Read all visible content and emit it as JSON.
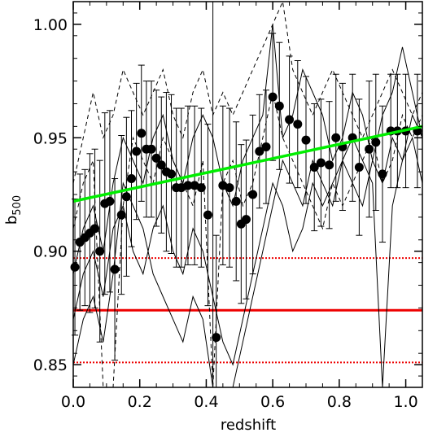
{
  "chart_data": {
    "type": "scatter",
    "title": "",
    "xlabel": "redshift",
    "ylabel_main": "b",
    "ylabel_sub": "500",
    "xlim": [
      0.0,
      1.05
    ],
    "ylim": [
      0.84,
      1.01
    ],
    "x_ticks": [
      0.0,
      0.2,
      0.4,
      0.6,
      0.8,
      1.0
    ],
    "x_tick_labels": [
      "0.0",
      "0.2",
      "0.4",
      "0.6",
      "0.8",
      "1.0"
    ],
    "y_ticks": [
      0.85,
      0.9,
      0.95,
      1.0
    ],
    "y_tick_labels": [
      "0.85",
      "0.90",
      "0.95",
      "1.00"
    ],
    "grid": false,
    "colors": {
      "fit_line": "#00ee00",
      "reference_lines": "#ee0000",
      "points": "#000000"
    },
    "points": {
      "x": [
        0.005,
        0.02,
        0.035,
        0.05,
        0.065,
        0.08,
        0.095,
        0.11,
        0.125,
        0.145,
        0.16,
        0.175,
        0.19,
        0.205,
        0.22,
        0.235,
        0.25,
        0.265,
        0.28,
        0.295,
        0.31,
        0.325,
        0.345,
        0.365,
        0.385,
        0.405,
        0.43,
        0.45,
        0.47,
        0.49,
        0.505,
        0.52,
        0.54,
        0.56,
        0.58,
        0.6,
        0.62,
        0.65,
        0.675,
        0.7,
        0.725,
        0.745,
        0.77,
        0.79,
        0.81,
        0.84,
        0.86,
        0.89,
        0.91,
        0.93,
        0.955,
        0.975,
        1.0,
        1.035
      ],
      "y": [
        0.893,
        0.904,
        0.906,
        0.908,
        0.91,
        0.9,
        0.921,
        0.922,
        0.892,
        0.916,
        0.924,
        0.932,
        0.944,
        0.952,
        0.945,
        0.945,
        0.941,
        0.938,
        0.935,
        0.934,
        0.928,
        0.928,
        0.929,
        0.929,
        0.928,
        0.916,
        0.862,
        0.929,
        0.928,
        0.922,
        0.912,
        0.914,
        0.925,
        0.944,
        0.946,
        0.968,
        0.964,
        0.958,
        0.956,
        0.949,
        0.937,
        0.939,
        0.938,
        0.95,
        0.946,
        0.95,
        0.937,
        0.945,
        0.948,
        0.934,
        0.953,
        0.953,
        0.953,
        0.953
      ],
      "err": [
        0.03,
        0.03,
        0.03,
        0.035,
        0.035,
        0.04,
        0.04,
        0.04,
        0.04,
        0.035,
        0.035,
        0.03,
        0.03,
        0.03,
        0.03,
        0.03,
        0.03,
        0.03,
        0.035,
        0.035,
        0.035,
        0.035,
        0.035,
        0.035,
        0.035,
        0.04,
        0.045,
        0.035,
        0.035,
        0.035,
        0.035,
        0.035,
        0.035,
        0.025,
        0.025,
        0.028,
        0.028,
        0.028,
        0.028,
        0.028,
        0.028,
        0.028,
        0.028,
        0.028,
        0.028,
        0.028,
        0.03,
        0.03,
        0.03,
        0.03,
        0.025,
        0.025,
        0.025,
        0.025
      ]
    },
    "fit_line": {
      "x": [
        0.0,
        1.05
      ],
      "y": [
        0.922,
        0.955
      ]
    },
    "reference_lines": {
      "solid": 0.874,
      "dotted": [
        0.851,
        0.897
      ]
    },
    "vertical_line_x": 0.42,
    "solid_curves": [
      {
        "x": [
          0.0,
          0.03,
          0.06,
          0.09,
          0.12,
          0.15,
          0.18,
          0.21,
          0.24,
          0.27,
          0.3,
          0.33,
          0.36,
          0.39,
          0.42,
          0.45,
          0.48,
          0.51,
          0.54,
          0.57,
          0.6,
          0.63,
          0.66,
          0.69,
          0.72,
          0.75,
          0.78,
          0.81,
          0.84,
          0.87,
          0.9,
          0.93,
          0.96,
          0.99,
          1.02,
          1.05
        ],
        "y": [
          0.89,
          0.91,
          0.92,
          0.9,
          0.93,
          0.95,
          0.94,
          0.93,
          0.95,
          0.96,
          0.94,
          0.93,
          0.95,
          0.96,
          0.95,
          0.93,
          0.92,
          0.94,
          0.95,
          0.96,
          1.0,
          0.95,
          0.96,
          0.98,
          0.97,
          0.96,
          0.94,
          0.95,
          0.97,
          0.96,
          0.94,
          0.96,
          0.97,
          0.99,
          0.97,
          0.95
        ]
      },
      {
        "x": [
          0.0,
          0.03,
          0.06,
          0.09,
          0.12,
          0.15,
          0.18,
          0.21,
          0.24,
          0.27,
          0.3,
          0.33,
          0.36,
          0.39,
          0.42,
          0.45,
          0.48,
          0.51,
          0.54,
          0.57,
          0.6,
          0.63,
          0.66,
          0.69,
          0.72,
          0.75,
          0.78,
          0.81,
          0.84,
          0.87,
          0.9,
          0.93,
          0.96,
          0.99,
          1.02,
          1.05
        ],
        "y": [
          0.87,
          0.89,
          0.9,
          0.88,
          0.91,
          0.92,
          0.9,
          0.89,
          0.91,
          0.92,
          0.9,
          0.89,
          0.91,
          0.9,
          0.88,
          0.86,
          0.85,
          0.87,
          0.89,
          0.91,
          0.93,
          0.92,
          0.9,
          0.91,
          0.93,
          0.92,
          0.93,
          0.94,
          0.93,
          0.92,
          0.94,
          0.93,
          0.95,
          0.94,
          0.96,
          0.95
        ]
      },
      {
        "x": [
          0.0,
          0.03,
          0.06,
          0.09,
          0.12,
          0.15,
          0.18,
          0.21,
          0.24,
          0.27,
          0.3,
          0.33,
          0.36,
          0.39,
          0.42,
          0.45,
          0.48,
          0.51,
          0.54,
          0.57,
          0.6,
          0.63,
          0.66,
          0.69,
          0.72,
          0.75,
          0.78,
          0.81,
          0.84,
          0.87,
          0.9,
          0.93,
          0.96,
          0.99,
          1.02,
          1.05
        ],
        "y": [
          0.85,
          0.87,
          0.88,
          0.86,
          0.89,
          0.93,
          0.92,
          0.91,
          0.89,
          0.88,
          0.87,
          0.86,
          0.88,
          0.87,
          0.84,
          0.82,
          0.84,
          0.86,
          0.88,
          0.9,
          0.92,
          0.94,
          0.93,
          0.92,
          0.94,
          0.93,
          0.92,
          0.94,
          0.95,
          0.94,
          0.93,
          0.84,
          0.92,
          0.94,
          0.95,
          0.93
        ]
      }
    ],
    "dashed_curves": [
      {
        "x": [
          0.0,
          0.03,
          0.06,
          0.09,
          0.12,
          0.15,
          0.18,
          0.21,
          0.24,
          0.27,
          0.3,
          0.33,
          0.36,
          0.39,
          0.42,
          0.45,
          0.48,
          0.51,
          0.54,
          0.57,
          0.6,
          0.63,
          0.66,
          0.69,
          0.72,
          0.75,
          0.78,
          0.81,
          0.84,
          0.87,
          0.9,
          0.93,
          0.96,
          0.99,
          1.02,
          1.05
        ],
        "y": [
          0.93,
          0.95,
          0.97,
          0.95,
          0.96,
          0.98,
          0.97,
          0.96,
          0.97,
          0.98,
          0.96,
          0.95,
          0.97,
          0.98,
          0.96,
          0.97,
          0.96,
          0.97,
          0.98,
          0.99,
          1.0,
          1.01,
          0.98,
          0.97,
          0.96,
          0.97,
          0.98,
          0.97,
          0.96,
          0.95,
          0.96,
          0.97,
          0.98,
          0.97,
          0.96,
          0.97
        ]
      },
      {
        "x": [
          0.0,
          0.03,
          0.06,
          0.09,
          0.12,
          0.15,
          0.18,
          0.21,
          0.24,
          0.27,
          0.3,
          0.33,
          0.36,
          0.39,
          0.42,
          0.45,
          0.48,
          0.51,
          0.54,
          0.57,
          0.6,
          0.63,
          0.66,
          0.69,
          0.72,
          0.75,
          0.78,
          0.81,
          0.84,
          0.87,
          0.9,
          0.93,
          0.96,
          0.99,
          1.02,
          1.05
        ],
        "y": [
          0.91,
          0.93,
          0.94,
          0.84,
          0.84,
          0.92,
          0.95,
          0.94,
          0.93,
          0.95,
          0.94,
          0.93,
          0.92,
          0.94,
          0.84,
          0.93,
          0.94,
          0.92,
          0.93,
          0.95,
          0.97,
          0.95,
          0.94,
          0.93,
          0.92,
          0.91,
          0.93,
          0.92,
          0.93,
          0.94,
          0.95,
          0.93,
          0.94,
          0.96,
          0.95,
          0.96
        ]
      }
    ]
  }
}
